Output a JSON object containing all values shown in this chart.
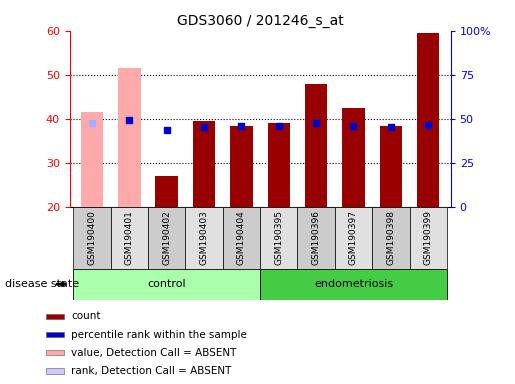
{
  "title": "GDS3060 / 201246_s_at",
  "samples": [
    "GSM190400",
    "GSM190401",
    "GSM190402",
    "GSM190403",
    "GSM190404",
    "GSM190395",
    "GSM190396",
    "GSM190397",
    "GSM190398",
    "GSM190399"
  ],
  "count_values": [
    41.5,
    51.5,
    27.0,
    39.5,
    38.5,
    39.0,
    48.0,
    42.5,
    38.5,
    59.5
  ],
  "rank_values": [
    47.5,
    49.5,
    44.0,
    45.5,
    46.0,
    46.0,
    47.5,
    46.0,
    45.5,
    46.5
  ],
  "absent_count_indices": [
    0,
    1
  ],
  "absent_rank_indices": [
    0
  ],
  "ylim_left": [
    20,
    60
  ],
  "ylim_right": [
    0,
    100
  ],
  "yticks_left": [
    20,
    30,
    40,
    50,
    60
  ],
  "yticks_right": [
    0,
    25,
    50,
    75,
    100
  ],
  "ytick_labels_right": [
    "0",
    "25",
    "50",
    "75",
    "100%"
  ],
  "bar_color_dark": "#990000",
  "bar_color_light": "#ffaaaa",
  "rank_color_dark": "#0000cc",
  "rank_color_light": "#aaaaff",
  "control_label": "control",
  "endometriosis_label": "endometriosis",
  "disease_state_label": "disease state",
  "control_color": "#aaffaa",
  "endometriosis_color": "#44cc44",
  "legend_items": [
    {
      "color": "#990000",
      "label": "count"
    },
    {
      "color": "#0000cc",
      "label": "percentile rank within the sample"
    },
    {
      "color": "#ffaaaa",
      "label": "value, Detection Call = ABSENT"
    },
    {
      "color": "#ccccff",
      "label": "rank, Detection Call = ABSENT"
    }
  ],
  "grid_yticks": [
    30,
    40,
    50
  ],
  "box_colors": [
    "#cccccc",
    "#e0e0e0"
  ]
}
